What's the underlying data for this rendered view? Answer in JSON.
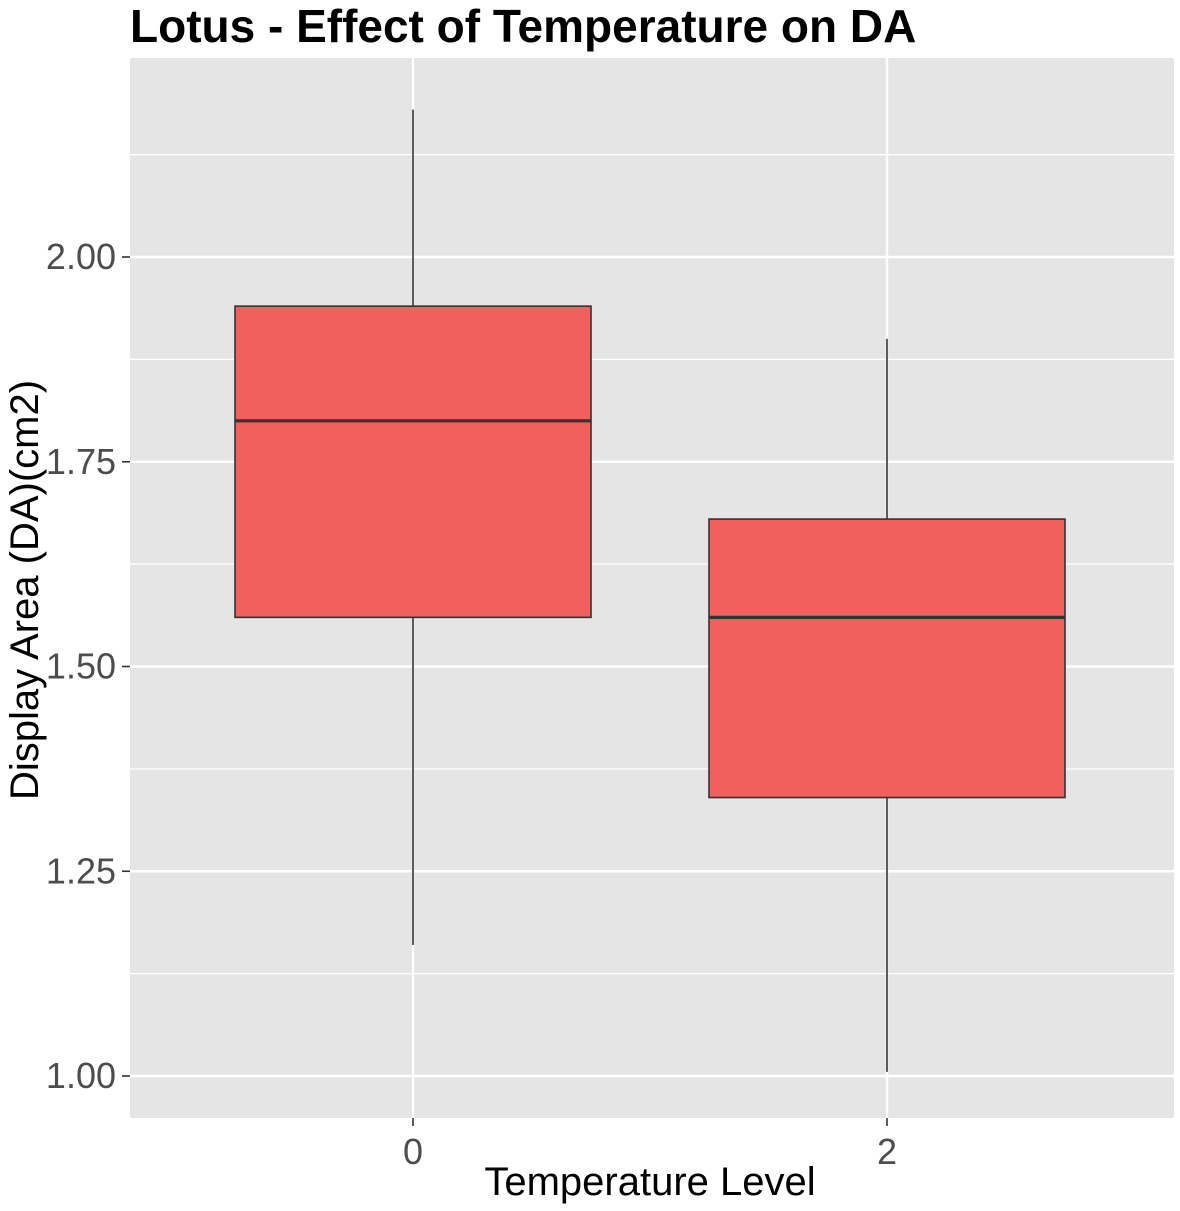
{
  "chart_data": {
    "type": "boxplot",
    "title": "Lotus - Effect of Temperature on DA",
    "xlabel": "Temperature Level",
    "ylabel": "Display Area (DA)(cm2)",
    "categories": [
      "0",
      "2"
    ],
    "ylim": [
      0.95,
      2.25
    ],
    "y_ticks": [
      1.0,
      1.25,
      1.5,
      1.75,
      2.0
    ],
    "y_tick_labels": [
      "1.00",
      "1.25",
      "1.50",
      "1.75",
      "2.00"
    ],
    "grid": true,
    "boxes": [
      {
        "category": "0",
        "min": 1.16,
        "q1": 1.56,
        "median": 1.8,
        "q3": 1.94,
        "max": 2.18
      },
      {
        "category": "2",
        "min": 1.005,
        "q1": 1.34,
        "median": 1.56,
        "q3": 1.68,
        "max": 1.9
      }
    ],
    "colors": {
      "fill": "#F2605E",
      "outline": "#333333",
      "panel": "#E5E5E5",
      "grid": "#FFFFFF"
    }
  }
}
